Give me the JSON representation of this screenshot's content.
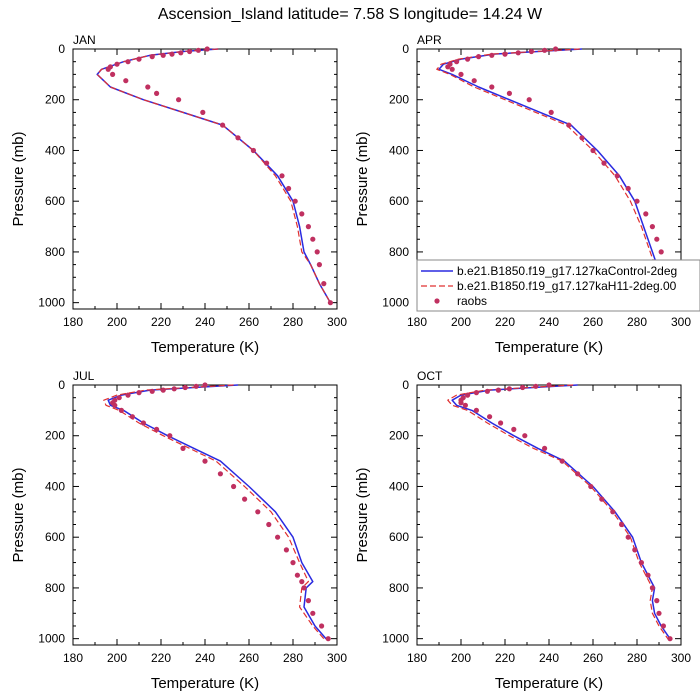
{
  "title": "Ascension_Island  latitude= 7.58 S longitude= 14.24 W",
  "colors": {
    "control": "#2a2ae0",
    "h11": "#e03030",
    "raobs": "#c03060"
  },
  "legend": {
    "items": [
      {
        "label": "b.e21.B1850.f19_g17.127kaControl-2deg",
        "style": "solid"
      },
      {
        "label": "b.e21.B1850.f19_g17.127kaH11-2deg.00",
        "style": "dashed"
      },
      {
        "label": "raobs",
        "style": "marker"
      }
    ]
  },
  "chart_data": [
    {
      "type": "line",
      "panel": "JAN",
      "xlabel": "Temperature (K)",
      "ylabel": "Pressure (mb)",
      "xlim": [
        180,
        300
      ],
      "ylim": [
        1025,
        0
      ],
      "y_inverted": true,
      "xticks": [
        180,
        200,
        220,
        240,
        260,
        280,
        300
      ],
      "yticks": [
        0,
        200,
        400,
        600,
        800,
        1000
      ],
      "series": [
        {
          "name": "b.e21.B1850.f19_g17.127kaControl-2deg",
          "x": [
            246,
            230,
            215,
            203,
            193,
            191,
            197,
            212,
            230,
            248,
            262,
            273,
            280,
            283,
            285,
            288,
            292,
            297
          ],
          "y": [
            0,
            10,
            25,
            50,
            80,
            100,
            150,
            200,
            250,
            300,
            400,
            500,
            600,
            700,
            800,
            850,
            925,
            1000
          ]
        },
        {
          "name": "b.e21.B1850.f19_g17.127kaH11-2deg.00",
          "x": [
            246,
            230,
            215,
            203,
            193,
            191,
            197,
            212,
            230,
            248,
            262,
            272,
            279,
            282,
            284,
            288,
            292,
            297
          ],
          "y": [
            0,
            10,
            25,
            50,
            80,
            100,
            150,
            200,
            250,
            300,
            400,
            500,
            600,
            700,
            800,
            850,
            925,
            1000
          ]
        },
        {
          "name": "raobs",
          "x": [
            241,
            237,
            233,
            229,
            225,
            221,
            216,
            210,
            205,
            200,
            197,
            196,
            198,
            204,
            214,
            218,
            228,
            239,
            248,
            255,
            262,
            268,
            275,
            278,
            281,
            284,
            287,
            289,
            291,
            292,
            294,
            297
          ],
          "y": [
            0,
            5,
            10,
            15,
            20,
            25,
            30,
            40,
            50,
            60,
            70,
            80,
            100,
            125,
            150,
            175,
            200,
            250,
            300,
            350,
            400,
            450,
            500,
            550,
            600,
            650,
            700,
            750,
            800,
            850,
            925,
            1000
          ]
        }
      ]
    },
    {
      "type": "line",
      "panel": "APR",
      "xlabel": "Temperature (K)",
      "ylabel": "Pressure (mb)",
      "xlim": [
        180,
        300
      ],
      "ylim": [
        1025,
        0
      ],
      "y_inverted": true,
      "xticks": [
        180,
        200,
        220,
        240,
        260,
        280,
        300
      ],
      "yticks": [
        0,
        200,
        400,
        600,
        800,
        1000
      ],
      "series": [
        {
          "name": "b.e21.B1850.f19_g17.127kaControl-2deg",
          "x": [
            255,
            235,
            215,
            200,
            192,
            190,
            196,
            208,
            222,
            236,
            250,
            262,
            272,
            279,
            283,
            287,
            291,
            296
          ],
          "y": [
            0,
            10,
            20,
            40,
            60,
            80,
            100,
            150,
            200,
            250,
            300,
            400,
            500,
            600,
            700,
            800,
            900,
            1000
          ]
        },
        {
          "name": "b.e21.B1850.f19_g17.127kaH11-2deg.00",
          "x": [
            254,
            234,
            214,
            199,
            191,
            189,
            195,
            206,
            220,
            234,
            248,
            260,
            270,
            277,
            282,
            286,
            290,
            295
          ],
          "y": [
            0,
            10,
            20,
            40,
            60,
            80,
            100,
            150,
            200,
            250,
            300,
            400,
            500,
            600,
            700,
            800,
            900,
            1000
          ]
        },
        {
          "name": "raobs",
          "x": [
            243,
            238,
            232,
            226,
            220,
            214,
            208,
            203,
            198,
            195,
            194,
            196,
            200,
            206,
            214,
            222,
            231,
            241,
            249,
            255,
            260,
            265,
            271,
            276,
            280,
            284,
            287,
            289,
            291,
            292,
            294,
            297
          ],
          "y": [
            0,
            5,
            10,
            15,
            20,
            25,
            30,
            40,
            50,
            60,
            70,
            80,
            100,
            125,
            150,
            175,
            200,
            250,
            300,
            350,
            400,
            450,
            500,
            550,
            600,
            650,
            700,
            750,
            800,
            850,
            925,
            1000
          ]
        }
      ]
    },
    {
      "type": "line",
      "panel": "JUL",
      "xlabel": "Temperature (K)",
      "ylabel": "Pressure (mb)",
      "xlim": [
        180,
        300
      ],
      "ylim": [
        1025,
        0
      ],
      "y_inverted": true,
      "xticks": [
        180,
        200,
        220,
        240,
        260,
        280,
        300
      ],
      "yticks": [
        0,
        200,
        400,
        600,
        800,
        1000
      ],
      "series": [
        {
          "name": "b.e21.B1850.f19_g17.127kaControl-2deg",
          "x": [
            255,
            235,
            215,
            202,
            196,
            197,
            203,
            212,
            223,
            235,
            247,
            260,
            272,
            280,
            284,
            289,
            286,
            285,
            290,
            295
          ],
          "y": [
            0,
            10,
            20,
            40,
            60,
            80,
            100,
            150,
            200,
            250,
            300,
            400,
            500,
            600,
            700,
            775,
            800,
            875,
            950,
            1000
          ]
        },
        {
          "name": "b.e21.B1850.f19_g17.127kaH11-2deg.00",
          "x": [
            253,
            233,
            213,
            200,
            194,
            195,
            201,
            210,
            221,
            233,
            245,
            258,
            270,
            278,
            283,
            287,
            284,
            283,
            289,
            294
          ],
          "y": [
            0,
            10,
            20,
            40,
            60,
            80,
            100,
            150,
            200,
            250,
            300,
            400,
            500,
            600,
            700,
            775,
            800,
            875,
            950,
            1000
          ]
        },
        {
          "name": "raobs",
          "x": [
            240,
            236,
            231,
            226,
            221,
            216,
            210,
            205,
            201,
            199,
            198,
            199,
            202,
            207,
            212,
            218,
            224,
            230,
            240,
            247,
            253,
            258,
            264,
            269,
            273,
            277,
            280,
            282,
            284,
            285,
            287,
            289,
            293,
            296
          ],
          "y": [
            0,
            5,
            10,
            15,
            20,
            25,
            30,
            40,
            50,
            60,
            70,
            80,
            100,
            125,
            150,
            175,
            200,
            250,
            300,
            350,
            400,
            450,
            500,
            550,
            600,
            650,
            700,
            750,
            775,
            800,
            850,
            900,
            950,
            1000
          ]
        }
      ]
    },
    {
      "type": "line",
      "panel": "OCT",
      "xlabel": "Temperature (K)",
      "ylabel": "Pressure (mb)",
      "xlim": [
        180,
        300
      ],
      "ylim": [
        1025,
        0
      ],
      "y_inverted": true,
      "xticks": [
        180,
        200,
        220,
        240,
        260,
        280,
        300
      ],
      "yticks": [
        0,
        200,
        400,
        600,
        800,
        1000
      ],
      "series": [
        {
          "name": "b.e21.B1850.f19_g17.127kaControl-2deg",
          "x": [
            253,
            233,
            213,
            200,
            196,
            198,
            205,
            214,
            224,
            235,
            247,
            260,
            270,
            278,
            282,
            288,
            287,
            288,
            291,
            295
          ],
          "y": [
            0,
            10,
            20,
            40,
            60,
            80,
            100,
            150,
            200,
            250,
            300,
            400,
            500,
            600,
            700,
            800,
            850,
            900,
            950,
            1000
          ]
        },
        {
          "name": "b.e21.B1850.f19_g17.127kaH11-2deg.00",
          "x": [
            251,
            231,
            211,
            198,
            194,
            196,
            203,
            212,
            222,
            233,
            246,
            259,
            269,
            277,
            281,
            287,
            286,
            287,
            290,
            294
          ],
          "y": [
            0,
            10,
            20,
            40,
            60,
            80,
            100,
            150,
            200,
            250,
            300,
            400,
            500,
            600,
            700,
            800,
            850,
            900,
            950,
            1000
          ]
        },
        {
          "name": "raobs",
          "x": [
            240,
            234,
            228,
            222,
            217,
            212,
            207,
            203,
            201,
            200,
            200,
            202,
            207,
            213,
            218,
            224,
            229,
            238,
            246,
            253,
            259,
            264,
            269,
            273,
            276,
            279,
            282,
            285,
            287,
            289,
            290,
            292,
            295
          ],
          "y": [
            0,
            5,
            10,
            15,
            20,
            25,
            30,
            40,
            50,
            60,
            70,
            80,
            100,
            125,
            150,
            175,
            200,
            250,
            300,
            350,
            400,
            450,
            500,
            550,
            600,
            650,
            700,
            750,
            800,
            850,
            900,
            950,
            1000
          ]
        }
      ]
    }
  ]
}
